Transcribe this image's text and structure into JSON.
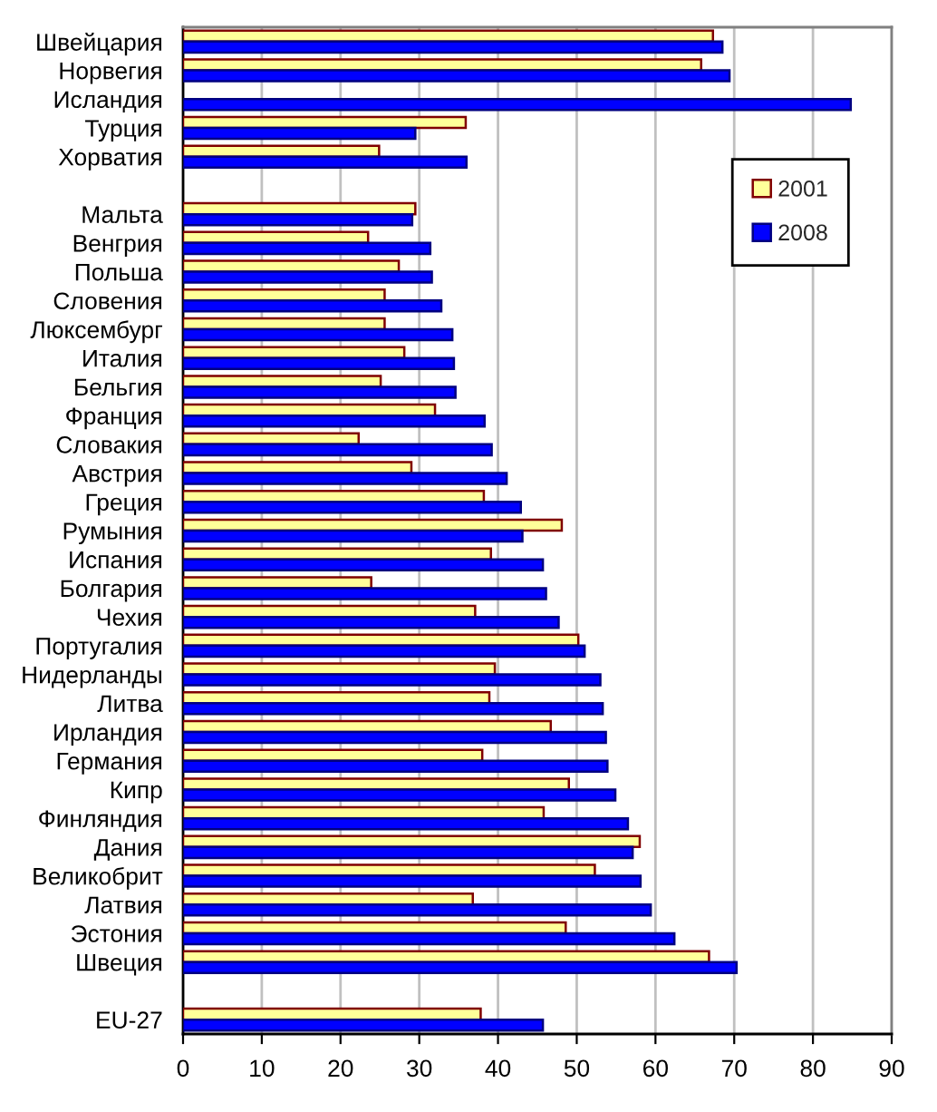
{
  "chart_data": {
    "type": "bar",
    "orientation": "horizontal",
    "categories": [
      "Швейцария",
      "Норвегия",
      "Исландия",
      "Турция",
      "Хорватия",
      null,
      "Мальта",
      "Венгрия",
      "Польша",
      "Словения",
      "Люксембург",
      "Италия",
      "Бельгия",
      "Франция",
      "Словакия",
      "Австрия",
      "Греция",
      "Румыния",
      "Испания",
      "Болгария",
      "Чехия",
      "Португалия",
      "Нидерланды",
      "Литва",
      "Ирландия",
      "Германия",
      "Кипр",
      "Финляндия",
      "Дания",
      "Великобрит",
      "Латвия",
      "Эстония",
      "Швеция",
      null,
      "EU-27"
    ],
    "series": [
      {
        "name": "2001",
        "color": "#ffff99",
        "values": [
          67.3,
          65.8,
          null,
          35.9,
          24.9,
          null,
          29.5,
          23.5,
          27.4,
          25.6,
          25.6,
          28.1,
          25.1,
          32.0,
          22.3,
          29.0,
          38.2,
          48.1,
          39.1,
          23.9,
          37.1,
          50.2,
          39.6,
          38.9,
          46.7,
          38.0,
          49.0,
          45.8,
          58.0,
          52.3,
          36.8,
          48.6,
          66.8,
          null,
          37.8
        ]
      },
      {
        "name": "2008",
        "color": "#0000ff",
        "values": [
          68.5,
          69.4,
          84.8,
          29.5,
          36.0,
          null,
          29.1,
          31.4,
          31.6,
          32.8,
          34.2,
          34.4,
          34.6,
          38.3,
          39.2,
          41.1,
          42.9,
          43.1,
          45.7,
          46.1,
          47.7,
          51.0,
          53.0,
          53.3,
          53.7,
          53.9,
          54.9,
          56.5,
          57.1,
          58.1,
          59.4,
          62.4,
          70.3,
          null,
          45.7
        ]
      }
    ],
    "xlim": [
      0,
      90
    ],
    "xticks": [
      0,
      10,
      20,
      30,
      40,
      50,
      60,
      70,
      80,
      90
    ],
    "grid": "x",
    "legend": "top right"
  }
}
